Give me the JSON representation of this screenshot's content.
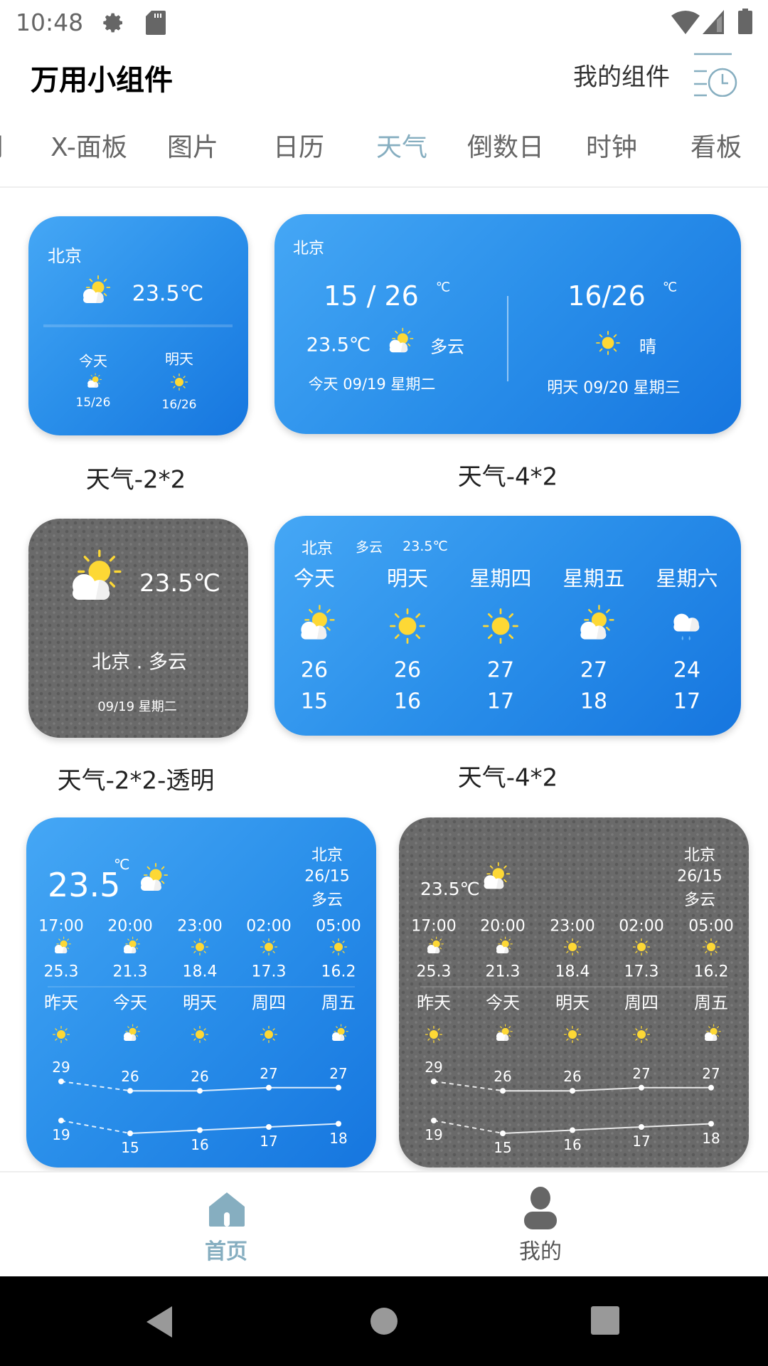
{
  "status_bar": {
    "time": "10:48",
    "icons": [
      "gear-icon",
      "sd-card-icon",
      "wifi-icon",
      "signal-icon",
      "battery-icon"
    ]
  },
  "header": {
    "title": "万用小组件",
    "my_widgets": "我的组件",
    "history_icon": "list-clock-icon"
  },
  "tabs": [
    {
      "label": "月"
    },
    {
      "label": "X-面板"
    },
    {
      "label": "图片"
    },
    {
      "label": "日历"
    },
    {
      "label": "天气",
      "active": true
    },
    {
      "label": "倒数日"
    },
    {
      "label": "时钟"
    },
    {
      "label": "看板"
    }
  ],
  "colors": {
    "accent": "#86AEC0",
    "card_blue_start": "#45A7F5",
    "card_blue_end": "#1676DF",
    "sun": "#FDD835"
  },
  "widgets": {
    "w1": {
      "name": "天气-2*2",
      "city": "北京",
      "temp": "23.5℃",
      "icon": "partly-cloudy",
      "days": [
        {
          "label": "今天",
          "icon": "partly-cloudy",
          "range": "15/26"
        },
        {
          "label": "明天",
          "icon": "sunny",
          "range": "16/26"
        }
      ]
    },
    "w2": {
      "name": "天气-4*2",
      "city": "北京",
      "today_range": "15 / 26",
      "unit": "℃",
      "temp": "23.5℃",
      "today_icon": "partly-cloudy",
      "today_cond": "多云",
      "today_date": "今天 09/19 星期二",
      "tomorrow_range": "16/26",
      "tomorrow_icon": "sunny",
      "tomorrow_cond": "晴",
      "tomorrow_date": "明天 09/20 星期三"
    },
    "w3": {
      "name": "天气-2*2-透明",
      "temp": "23.5℃",
      "icon": "partly-cloudy",
      "place": "北京 . 多云",
      "date": "09/19 星期二"
    },
    "w4": {
      "name": "天气-4*2",
      "city": "北京",
      "cond": "多云",
      "temp": "23.5℃",
      "days": [
        {
          "label": "今天",
          "icon": "partly-cloudy",
          "high": "26",
          "low": "15"
        },
        {
          "label": "明天",
          "icon": "sunny",
          "high": "26",
          "low": "16"
        },
        {
          "label": "星期四",
          "icon": "sunny",
          "high": "27",
          "low": "17"
        },
        {
          "label": "星期五",
          "icon": "partly-cloudy",
          "high": "27",
          "low": "18"
        },
        {
          "label": "星期六",
          "icon": "rain",
          "high": "24",
          "low": "17"
        }
      ]
    },
    "w5": {
      "temp": "23.5",
      "unit": "℃",
      "icon": "partly-cloudy",
      "city": "北京",
      "range": "26/15",
      "cond": "多云",
      "hours": [
        {
          "time": "17:00",
          "icon": "partly-cloudy",
          "temp": "25.3"
        },
        {
          "time": "20:00",
          "icon": "partly-cloudy",
          "temp": "21.3"
        },
        {
          "time": "23:00",
          "icon": "sunny",
          "temp": "18.4"
        },
        {
          "time": "02:00",
          "icon": "sunny",
          "temp": "17.3"
        },
        {
          "time": "05:00",
          "icon": "sunny",
          "temp": "16.2"
        }
      ],
      "days": [
        {
          "label": "昨天",
          "icon": "sunny",
          "high": 29,
          "low": 19
        },
        {
          "label": "今天",
          "icon": "partly-cloudy",
          "high": 26,
          "low": 15
        },
        {
          "label": "明天",
          "icon": "sunny",
          "high": 26,
          "low": 16
        },
        {
          "label": "周四",
          "icon": "sunny",
          "high": 27,
          "low": 17
        },
        {
          "label": "周五",
          "icon": "partly-cloudy",
          "high": 27,
          "low": 18
        }
      ]
    },
    "w6": {
      "temp": "23.5℃",
      "icon": "partly-cloudy",
      "city": "北京",
      "range": "26/15",
      "cond": "多云",
      "hours": [
        {
          "time": "17:00",
          "icon": "partly-cloudy",
          "temp": "25.3"
        },
        {
          "time": "20:00",
          "icon": "partly-cloudy",
          "temp": "21.3"
        },
        {
          "time": "23:00",
          "icon": "sunny",
          "temp": "18.4"
        },
        {
          "time": "02:00",
          "icon": "sunny",
          "temp": "17.3"
        },
        {
          "time": "05:00",
          "icon": "sunny",
          "temp": "16.2"
        }
      ],
      "days": [
        {
          "label": "昨天",
          "icon": "sunny",
          "high": 29,
          "low": 19
        },
        {
          "label": "今天",
          "icon": "partly-cloudy",
          "high": 26,
          "low": 15
        },
        {
          "label": "明天",
          "icon": "sunny",
          "high": 26,
          "low": 16
        },
        {
          "label": "周四",
          "icon": "sunny",
          "high": 27,
          "low": 17
        },
        {
          "label": "周五",
          "icon": "partly-cloudy",
          "high": 27,
          "low": 18
        }
      ]
    }
  },
  "bottom_nav": [
    {
      "label": "首页",
      "icon": "home-icon",
      "active": true
    },
    {
      "label": "我的",
      "icon": "person-icon"
    }
  ],
  "system_nav": [
    "back-icon",
    "home-circle-icon",
    "recents-icon"
  ]
}
